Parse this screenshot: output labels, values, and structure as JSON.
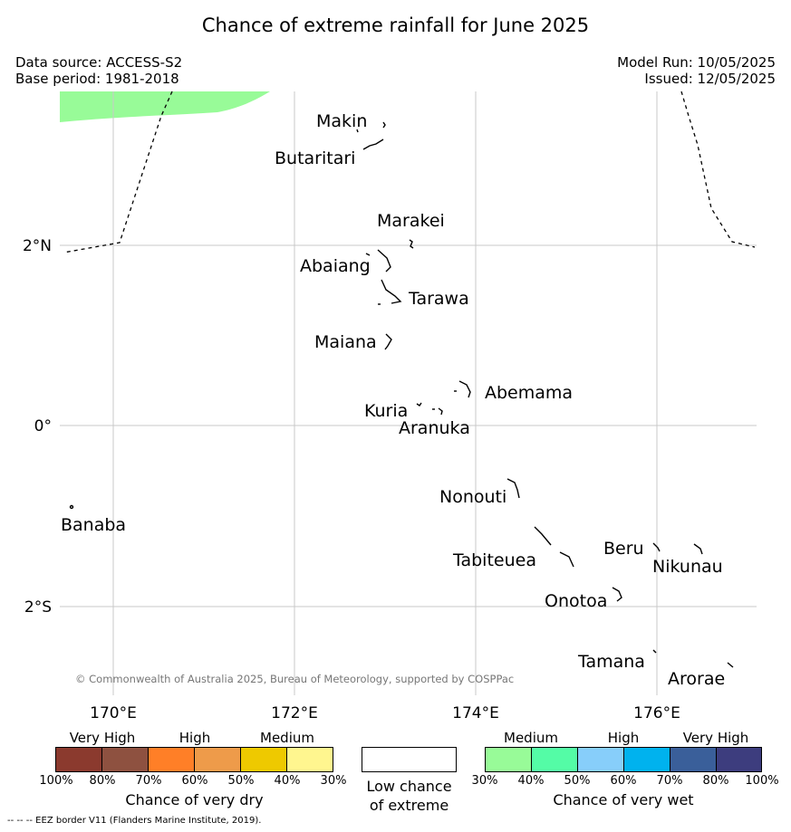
{
  "title": "Chance of extreme rainfall for June 2025",
  "data_source": "Data source: ACCESS-S2",
  "base_period": "Base period: 1981-2018",
  "model_run": "Model Run: 10/05/2025",
  "issued": "Issued: 12/05/2025",
  "map": {
    "lat_labels": [
      "2°N",
      "0°",
      "2°S"
    ],
    "lon_labels": [
      "170°E",
      "172°E",
      "174°E",
      "176°E"
    ],
    "places": [
      "Makin",
      "Butaritari",
      "Marakei",
      "Abaiang",
      "Tarawa",
      "Maiana",
      "Abemama",
      "Kuria",
      "Aranuka",
      "Banaba",
      "Nonouti",
      "Tabiteuea",
      "Beru",
      "Nikunau",
      "Onotoa",
      "Tamana",
      "Arorae"
    ],
    "copyright": "© Commonwealth of Australia 2025, Bureau of Meteorology, supported by COSPPac",
    "shaded_region": {
      "category": "30%-40%",
      "color": "#98fb98",
      "meaning": "Chance of very wet"
    }
  },
  "dry_legend": {
    "categories": [
      "Very High",
      "High",
      "Medium"
    ],
    "colors": [
      "#8b3a2e",
      "#8e5140",
      "#ff7f27",
      "#ee9b4a",
      "#eec900",
      "#fff68f"
    ],
    "ticks": [
      "100%",
      "80%",
      "70%",
      "60%",
      "50%",
      "40%",
      "30%"
    ],
    "title": "Chance of very dry"
  },
  "neutral_legend": {
    "line1": "Low chance",
    "line2": "of extreme",
    "color": "#ffffff"
  },
  "wet_legend": {
    "categories": [
      "Medium",
      "High",
      "Very High"
    ],
    "colors": [
      "#98fb98",
      "#54fca6",
      "#87cefa",
      "#00b2ee",
      "#3a5f9a",
      "#3d3d7e"
    ],
    "ticks": [
      "30%",
      "40%",
      "50%",
      "60%",
      "70%",
      "80%",
      "100%"
    ],
    "title": "Chance of very wet"
  },
  "footnote": "--  --  -- EEZ border V11 (Flanders Marine Institute, 2019)."
}
